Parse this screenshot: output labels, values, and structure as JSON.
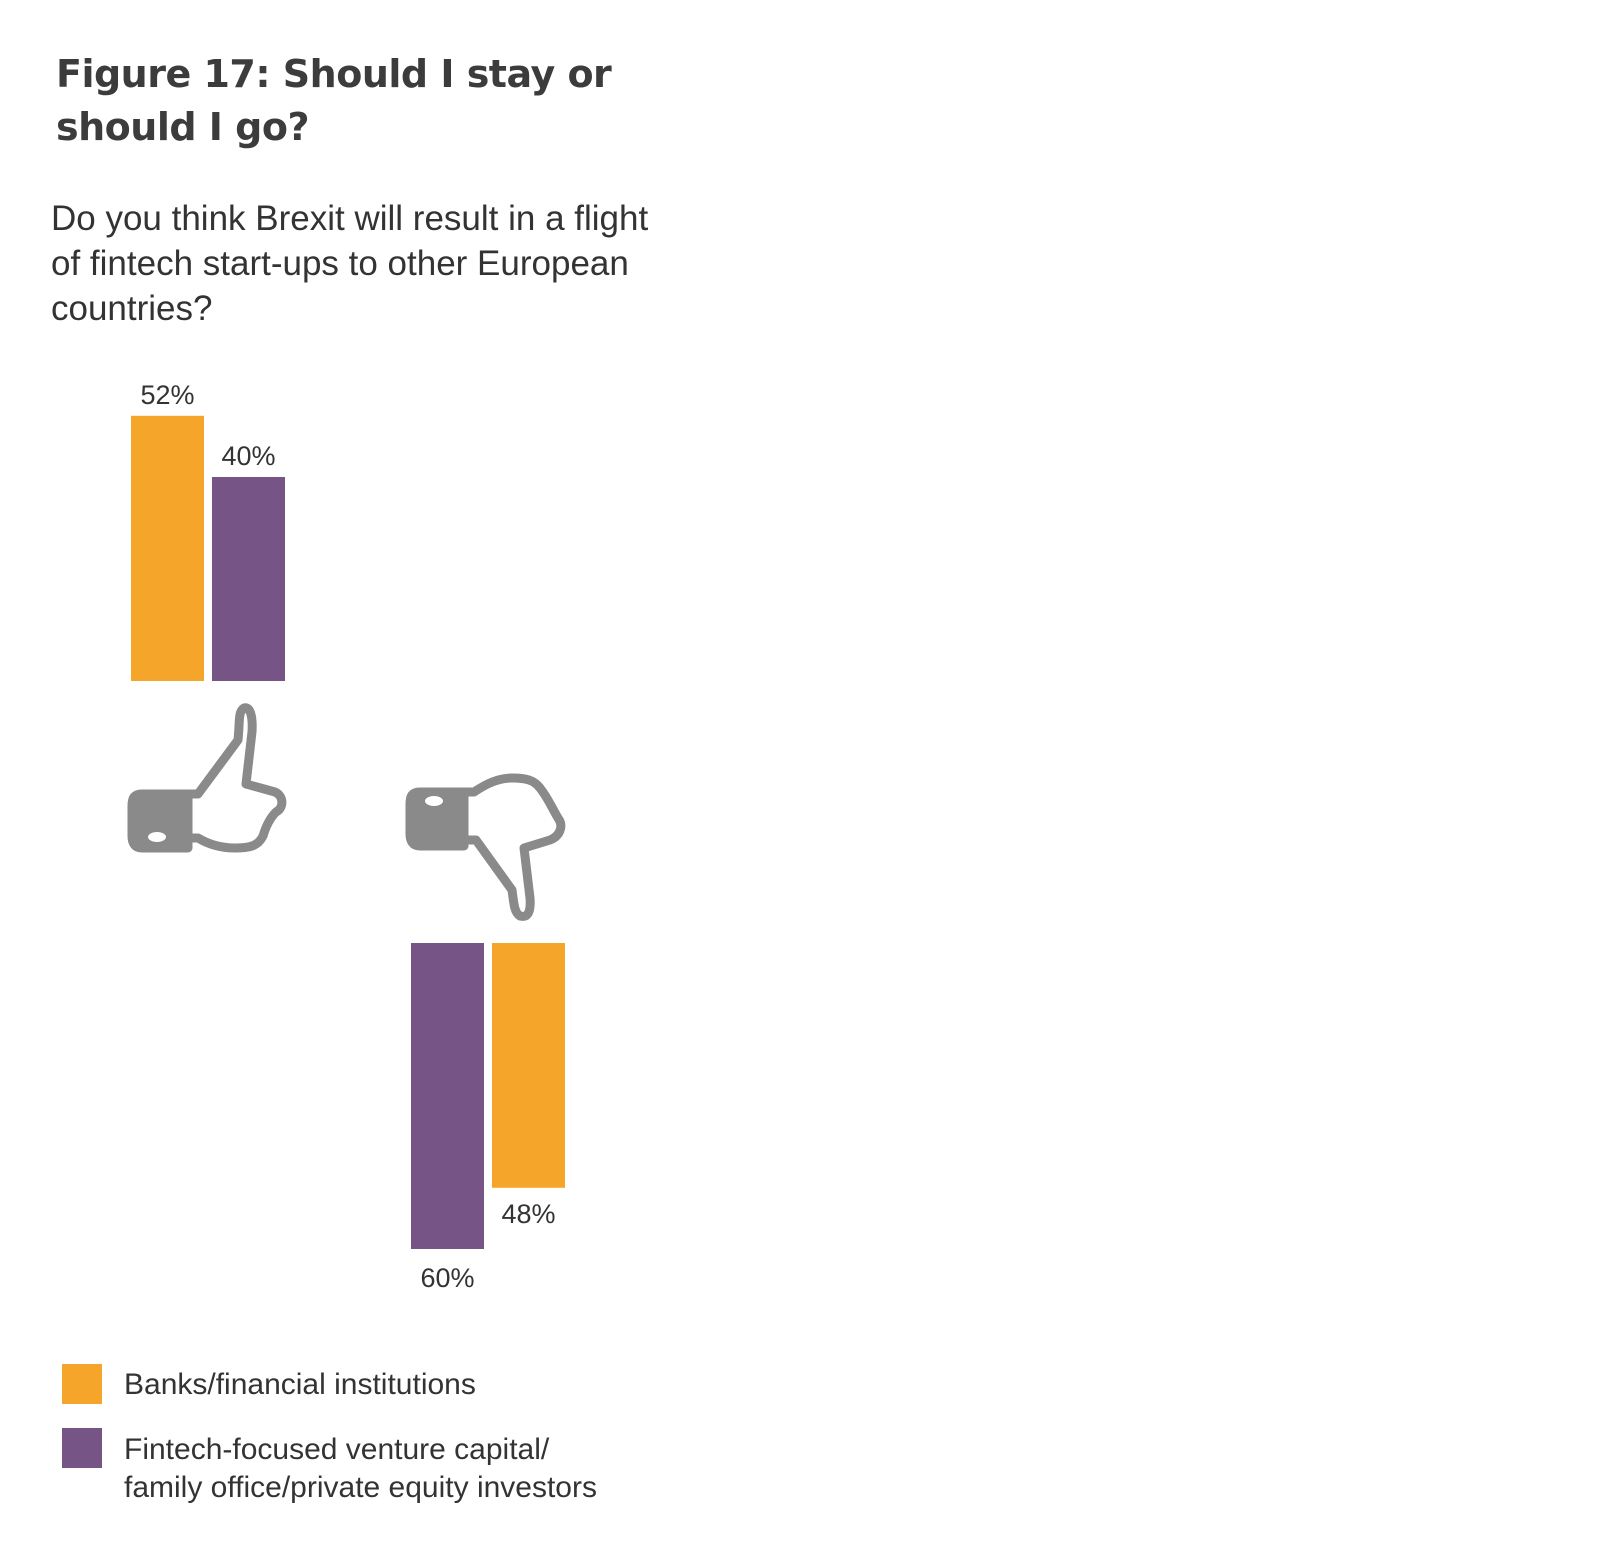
{
  "title": "Figure 17: Should I stay or should I go?",
  "subtitle": "Do you think Brexit will result in a flight of fintech start-ups to other European countries?",
  "chart_data": {
    "type": "bar",
    "categories": [
      "Yes",
      "No"
    ],
    "category_icons": [
      "thumbs-up-icon",
      "thumbs-down-icon"
    ],
    "series": [
      {
        "name": "Banks/financial institutions",
        "color": "#f5a62a",
        "values": [
          52,
          48
        ]
      },
      {
        "name": "Fintech-focused venture capital/ family office/private equity investors",
        "color": "#765586",
        "values": [
          40,
          60
        ]
      }
    ],
    "labels": {
      "yes_banks": "52%",
      "yes_investors": "40%",
      "no_investors": "60%",
      "no_banks": "48%"
    },
    "ylim": [
      0,
      60
    ],
    "grid": false,
    "legend_placement": "bottom-left",
    "icon_color": "#8a8a8a"
  },
  "legend": {
    "banks": "Banks/financial institutions",
    "investors_line1": "Fintech-focused venture capital/",
    "investors_line2": "family office/private equity investors"
  }
}
